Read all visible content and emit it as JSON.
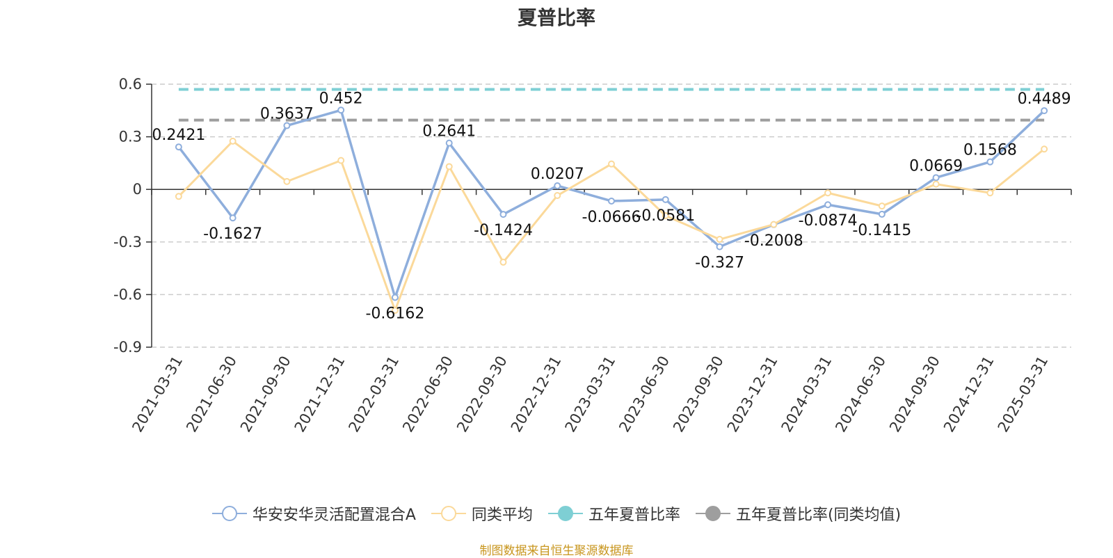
{
  "chart_data": {
    "type": "line",
    "title": "夏普比率",
    "categories": [
      "2021-03-31",
      "2021-06-30",
      "2021-09-30",
      "2021-12-31",
      "2022-03-31",
      "2022-06-30",
      "2022-09-30",
      "2022-12-31",
      "2023-03-31",
      "2023-06-30",
      "2023-09-30",
      "2023-12-31",
      "2024-03-31",
      "2024-06-30",
      "2024-09-30",
      "2024-12-31",
      "2025-03-31"
    ],
    "series": [
      {
        "name": "华安安华灵活配置混合A",
        "color": "#8eaedc",
        "values": [
          0.2421,
          -0.1627,
          0.3637,
          0.452,
          -0.6162,
          0.2641,
          -0.1424,
          0.0207,
          -0.0666,
          -0.0581,
          -0.327,
          -0.2008,
          -0.0874,
          -0.1415,
          0.0669,
          0.1568,
          0.4489
        ],
        "labels": [
          "0.2421",
          "-0.1627",
          "0.3637",
          "0.452",
          "-0.6162",
          "0.2641",
          "-0.1424",
          "0.0207",
          "-0.0666",
          "-0.0581",
          "-0.327",
          "-0.2008",
          "-0.0874",
          "-0.1415",
          "0.0669",
          "0.1568",
          "0.4489"
        ]
      },
      {
        "name": "同类平均",
        "color": "#fbd99a",
        "values": [
          -0.04,
          0.275,
          0.045,
          0.165,
          -0.69,
          0.13,
          -0.415,
          -0.035,
          0.145,
          -0.15,
          -0.285,
          -0.2,
          -0.02,
          -0.095,
          0.03,
          -0.02,
          0.23
        ]
      },
      {
        "name": "五年夏普比率",
        "color": "#7ecfd4",
        "constant": 0.57
      },
      {
        "name": "五年夏普比率(同类均值)",
        "color": "#9e9e9e",
        "constant": 0.395
      }
    ],
    "ylim": [
      -0.9,
      0.6
    ],
    "yticks": [
      "0.6",
      "0.3",
      "0",
      "-0.3",
      "-0.6",
      "-0.9"
    ],
    "ytick_values": [
      0.6,
      0.3,
      0,
      -0.3,
      -0.6,
      -0.9
    ],
    "grid": "horizontal dashed",
    "legend_position": "bottom"
  },
  "source_note": "制图数据来自恒生聚源数据库"
}
